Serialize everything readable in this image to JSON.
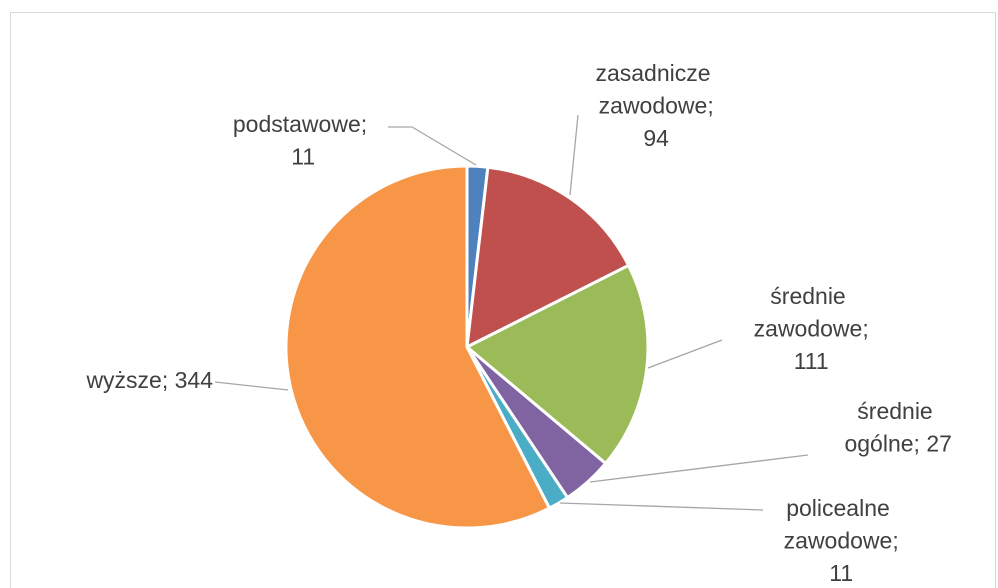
{
  "chart_data": {
    "type": "pie",
    "categories": [
      "podstawowe",
      "zasadnicze zawodowe",
      "średnie zawodowe",
      "średnie ogólne",
      "policealne zawodowe",
      "wyższe"
    ],
    "values": [
      11,
      94,
      111,
      27,
      11,
      344
    ],
    "value_labels": [
      "podstawowe; 11",
      "zasadnicze zawodowe; 94",
      "średnie zawodowe; 111",
      "średnie ogólne; 27",
      "policealne zawodowe; 11",
      "wyższe; 344"
    ],
    "colors": [
      "#4f81bd",
      "#c0504d",
      "#9bbb59",
      "#8064a2",
      "#4bacc6",
      "#f79646"
    ]
  }
}
